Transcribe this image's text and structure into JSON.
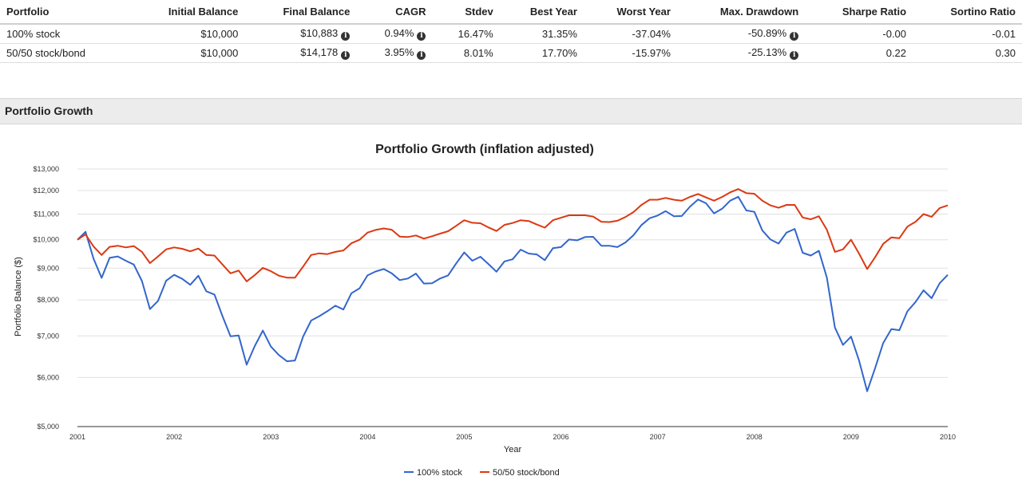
{
  "table": {
    "headers": [
      "Portfolio",
      "Initial Balance",
      "Final Balance",
      "CAGR",
      "Stdev",
      "Best Year",
      "Worst Year",
      "Max. Drawdown",
      "Sharpe Ratio",
      "Sortino Ratio"
    ],
    "rows": [
      {
        "portfolio": "100% stock",
        "initial": "$10,000",
        "final": "$10,883",
        "cagr": "0.94%",
        "stdev": "16.47%",
        "best": "31.35%",
        "worst": "-37.04%",
        "drawdown": "-50.89%",
        "sharpe": "-0.00",
        "sortino": "-0.01"
      },
      {
        "portfolio": "50/50 stock/bond",
        "initial": "$10,000",
        "final": "$14,178",
        "cagr": "3.95%",
        "stdev": "8.01%",
        "best": "17.70%",
        "worst": "-15.97%",
        "drawdown": "-25.13%",
        "sharpe": "0.22",
        "sortino": "0.30"
      }
    ],
    "info_icon": "info-circle-icon"
  },
  "section": {
    "title": "Portfolio Growth"
  },
  "chart_data": {
    "type": "line",
    "title": "Portfolio Growth (inflation adjusted)",
    "xlabel": "Year",
    "ylabel": "Portfolio Balance ($)",
    "yscale": "log",
    "ylim": [
      5000,
      13000
    ],
    "yticks": [
      5000,
      6000,
      7000,
      8000,
      9000,
      10000,
      11000,
      12000,
      13000
    ],
    "ytick_labels": [
      "$5,000",
      "$6,000",
      "$7,000",
      "$8,000",
      "$9,000",
      "$10,000",
      "$11,000",
      "$12,000",
      "$13,000"
    ],
    "xlim": [
      2001,
      2010
    ],
    "xticks": [
      "2001",
      "2002",
      "2003",
      "2004",
      "2005",
      "2006",
      "2007",
      "2008",
      "2009",
      "2010"
    ],
    "grid": true,
    "legend_position": "bottom",
    "x": [
      2001.0,
      2001.083,
      2001.167,
      2001.25,
      2001.333,
      2001.417,
      2001.5,
      2001.583,
      2001.667,
      2001.75,
      2001.833,
      2001.917,
      2002.0,
      2002.083,
      2002.167,
      2002.25,
      2002.333,
      2002.417,
      2002.5,
      2002.583,
      2002.667,
      2002.75,
      2002.833,
      2002.917,
      2003.0,
      2003.083,
      2003.167,
      2003.25,
      2003.333,
      2003.417,
      2003.5,
      2003.583,
      2003.667,
      2003.75,
      2003.833,
      2003.917,
      2004.0,
      2004.083,
      2004.167,
      2004.25,
      2004.333,
      2004.417,
      2004.5,
      2004.583,
      2004.667,
      2004.75,
      2004.833,
      2004.917,
      2005.0,
      2005.083,
      2005.167,
      2005.25,
      2005.333,
      2005.417,
      2005.5,
      2005.583,
      2005.667,
      2005.75,
      2005.833,
      2005.917,
      2006.0,
      2006.083,
      2006.167,
      2006.25,
      2006.333,
      2006.417,
      2006.5,
      2006.583,
      2006.667,
      2006.75,
      2006.833,
      2006.917,
      2007.0,
      2007.083,
      2007.167,
      2007.25,
      2007.333,
      2007.417,
      2007.5,
      2007.583,
      2007.667,
      2007.75,
      2007.833,
      2007.917,
      2008.0,
      2008.083,
      2008.167,
      2008.25,
      2008.333,
      2008.417,
      2008.5,
      2008.583,
      2008.667,
      2008.75,
      2008.833,
      2008.917,
      2009.0,
      2009.083,
      2009.167,
      2009.25,
      2009.333,
      2009.417,
      2009.5,
      2009.583,
      2009.667,
      2009.75,
      2009.833,
      2009.917,
      2010.0
    ],
    "series": [
      {
        "name": "100% stock",
        "color": "#3366cc",
        "values": [
          10000,
          10300,
          9320,
          8680,
          9350,
          9400,
          9250,
          9120,
          8580,
          7730,
          7970,
          8590,
          8780,
          8650,
          8460,
          8750,
          8260,
          8160,
          7530,
          6990,
          7010,
          6290,
          6740,
          7140,
          6730,
          6520,
          6370,
          6390,
          6980,
          7410,
          7530,
          7670,
          7830,
          7720,
          8200,
          8350,
          8760,
          8890,
          8970,
          8830,
          8610,
          8660,
          8820,
          8500,
          8510,
          8660,
          8760,
          9160,
          9540,
          9250,
          9390,
          9140,
          8880,
          9230,
          9300,
          9640,
          9500,
          9470,
          9270,
          9690,
          9730,
          10010,
          9980,
          10100,
          10110,
          9780,
          9780,
          9730,
          9900,
          10170,
          10560,
          10830,
          10940,
          11120,
          10910,
          10920,
          11300,
          11610,
          11450,
          11030,
          11220,
          11560,
          11730,
          11150,
          11090,
          10350,
          10010,
          9860,
          10270,
          10410,
          9530,
          9430,
          9600,
          8690,
          7220,
          6770,
          6980,
          6390,
          5700,
          6220,
          6820,
          7180,
          7150,
          7670,
          7940,
          8290,
          8050,
          8510,
          8780
        ]
      },
      {
        "name": "50/50 stock/bond",
        "color": "#dc3912",
        "values": [
          10000,
          10200,
          9750,
          9450,
          9740,
          9780,
          9720,
          9770,
          9560,
          9170,
          9400,
          9650,
          9720,
          9670,
          9580,
          9680,
          9450,
          9430,
          9120,
          8830,
          8920,
          8570,
          8770,
          9010,
          8900,
          8750,
          8690,
          8690,
          9050,
          9450,
          9510,
          9480,
          9560,
          9610,
          9870,
          10000,
          10270,
          10370,
          10430,
          10380,
          10120,
          10100,
          10160,
          10040,
          10130,
          10230,
          10320,
          10530,
          10750,
          10650,
          10630,
          10470,
          10330,
          10570,
          10640,
          10750,
          10720,
          10580,
          10460,
          10750,
          10850,
          10950,
          10950,
          10950,
          10900,
          10690,
          10680,
          10730,
          10880,
          11080,
          11380,
          11600,
          11600,
          11680,
          11600,
          11560,
          11720,
          11850,
          11700,
          11560,
          11720,
          11920,
          12070,
          11890,
          11860,
          11560,
          11360,
          11260,
          11380,
          11380,
          10860,
          10790,
          10910,
          10380,
          9560,
          9650,
          10000,
          9500,
          8970,
          9380,
          9850,
          10090,
          10060,
          10500,
          10690,
          11000,
          10890,
          11250,
          11360
        ]
      }
    ]
  }
}
